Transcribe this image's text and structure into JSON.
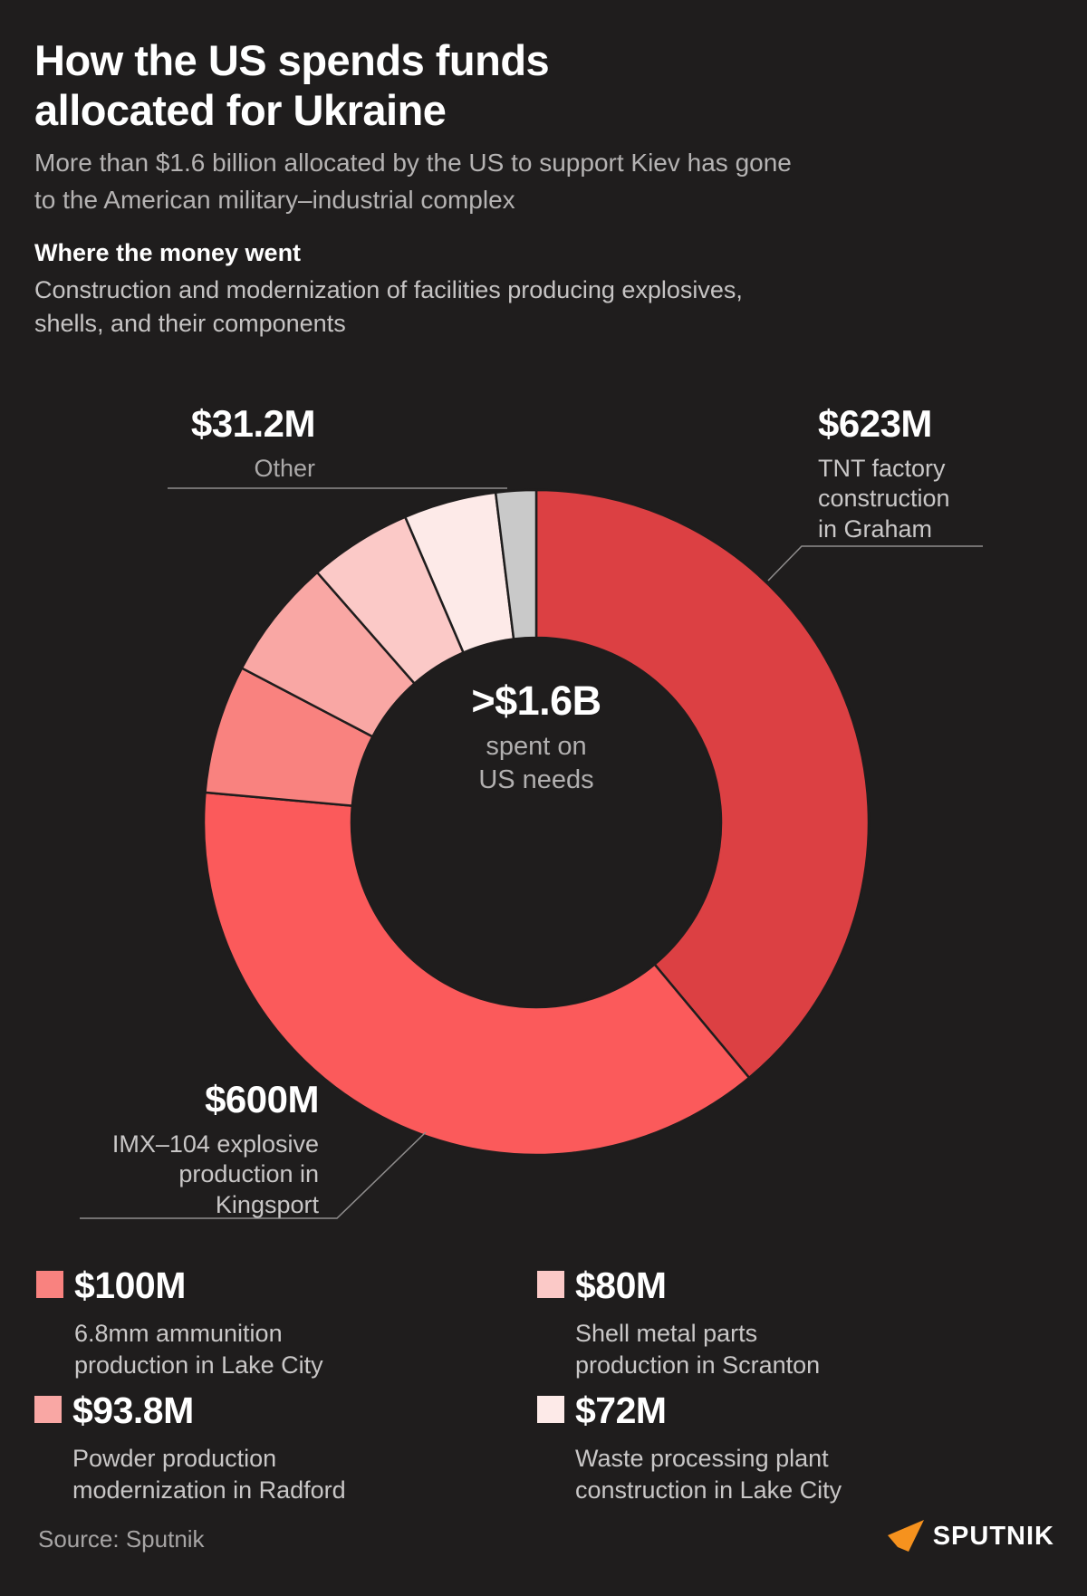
{
  "page": {
    "background": "#1f1d1d"
  },
  "header": {
    "title": "How the US spends funds\nallocated for Ukraine",
    "subtitle": "More than $1.6 billion allocated by the US to support Kiev has gone\nto the American military–industrial complex",
    "section_heading": "Where the money went",
    "section_description": "Construction and modernization of facilities producing explosives,\nshells, and their components"
  },
  "chart_data": {
    "type": "pie",
    "variant": "donut",
    "unit": "USD millions",
    "start_angle_deg": 0,
    "direction": "clockwise",
    "total_value": 1600,
    "center_label": ">$1.6B",
    "center_sublabel": "spent on\nUS needs",
    "segments": [
      {
        "label": "TNT factory construction in Graham",
        "value_label": "$623M",
        "value": 623,
        "color": "#dc4043"
      },
      {
        "label": "IMX–104 explosive production in Kingsport",
        "value_label": "$600M",
        "value": 600,
        "color": "#fb5a5b"
      },
      {
        "label": "6.8mm ammunition production in Lake City",
        "value_label": "$100M",
        "value": 100,
        "color": "#f9827f"
      },
      {
        "label": "Powder production modernization in Radford",
        "value_label": "$93.8M",
        "value": 93.8,
        "color": "#f9a7a4"
      },
      {
        "label": "Shell metal parts production in Scranton",
        "value_label": "$80M",
        "value": 80,
        "color": "#fbc9c7"
      },
      {
        "label": "Waste processing plant construction in Lake City",
        "value_label": "$72M",
        "value": 72,
        "color": "#fdeae8"
      },
      {
        "label": "Other",
        "value_label": "$31.2M",
        "value": 31.2,
        "color": "#c9c9c9"
      }
    ]
  },
  "callouts": {
    "graham": {
      "value": "$623M",
      "desc": "TNT factory\nconstruction\nin Graham"
    },
    "other": {
      "value": "$31.2M",
      "desc": "Other"
    },
    "kingsport": {
      "value": "$600M",
      "desc": "IMX–104 explosive\nproduction in\nKingsport"
    }
  },
  "legend": {
    "items": [
      {
        "value": "$100M",
        "desc": "6.8mm ammunition\nproduction in Lake City",
        "color": "#f9827f"
      },
      {
        "value": "$80M",
        "desc": "Shell metal parts\nproduction in Scranton",
        "color": "#fbc9c7"
      },
      {
        "value": "$93.8M",
        "desc": "Powder production\nmodernization in Radford",
        "color": "#f9a7a4"
      },
      {
        "value": "$72M",
        "desc": "Waste processing plant\nconstruction in Lake City",
        "color": "#fdeae8"
      }
    ]
  },
  "footer": {
    "source": "Source: Sputnik",
    "logo_text": "SPUTNIK",
    "logo_color": "#f6921e"
  }
}
